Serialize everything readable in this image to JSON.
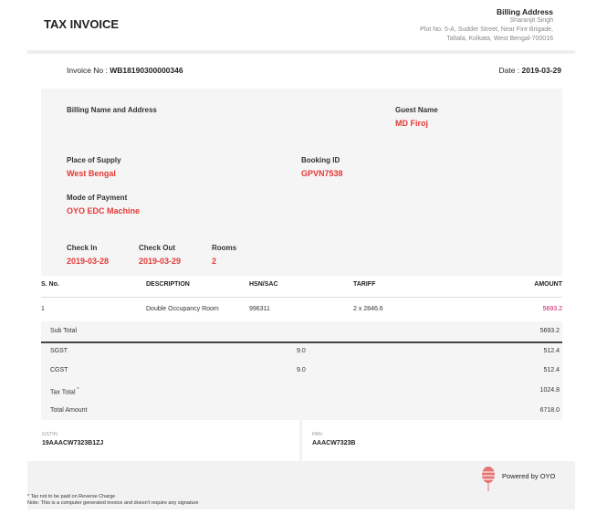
{
  "header": {
    "title": "TAX INVOICE",
    "billing_address_label": "Billing Address",
    "billing_name": "Sharanjit Singh",
    "address_line1": "Plot No. 5-A, Sudder Street, Near Fire Brigade,",
    "address_line2": "Taltala, Kolkata, West Bengal-700016"
  },
  "invoice": {
    "number_label": "Invoice No : ",
    "number": "WB18190300000346",
    "date_label": "Date : ",
    "date": "2019-03-29"
  },
  "details": {
    "billing_label": "Billing Name and Address",
    "guest_label": "Guest Name",
    "guest": "MD Firoj",
    "supply_label": "Place of Supply",
    "supply": "West Bengal",
    "booking_label": "Booking ID",
    "booking": "GPVN7538",
    "payment_label": "Mode of Payment",
    "payment": "OYO EDC Machine",
    "checkin_label": "Check In",
    "checkin": "2019-03-28",
    "checkout_label": "Check Out",
    "checkout": "2019-03-29",
    "rooms_label": "Rooms",
    "rooms": "2"
  },
  "table": {
    "headers": [
      "S. No.",
      "DESCRIPTION",
      "HSN/SAC",
      "TARIFF",
      "AMOUNT"
    ],
    "rows": [
      [
        "1",
        "Double Occupancy Room",
        "996311",
        "2 x 2846.6",
        "5693.2"
      ]
    ]
  },
  "totals": {
    "sub_total_label": "Sub Total",
    "sub_total": "5693.2",
    "sgst_label": "SGST",
    "sgst_rate": "9.0",
    "sgst": "512.4",
    "cgst_label": "CGST",
    "cgst_rate": "9.0",
    "cgst": "512.4",
    "tax_total_label": "Tax Total",
    "tax_total_mark": "*",
    "tax_total": "1024.8",
    "total_label": "Total Amount",
    "total": "6718.0"
  },
  "ids": {
    "gstin_label": "GSTIN",
    "gstin": "19AAACW7323B1ZJ",
    "pan_label": "PAN",
    "pan": "AAACW7323B"
  },
  "footer": {
    "powered": "Powered by OYO",
    "note1": "* Tax not to be paid on Reverse Charge",
    "note2": "Note: This is a computer generated invoice and doesn't require any signature"
  },
  "colors": {
    "accent": "#e53935"
  }
}
